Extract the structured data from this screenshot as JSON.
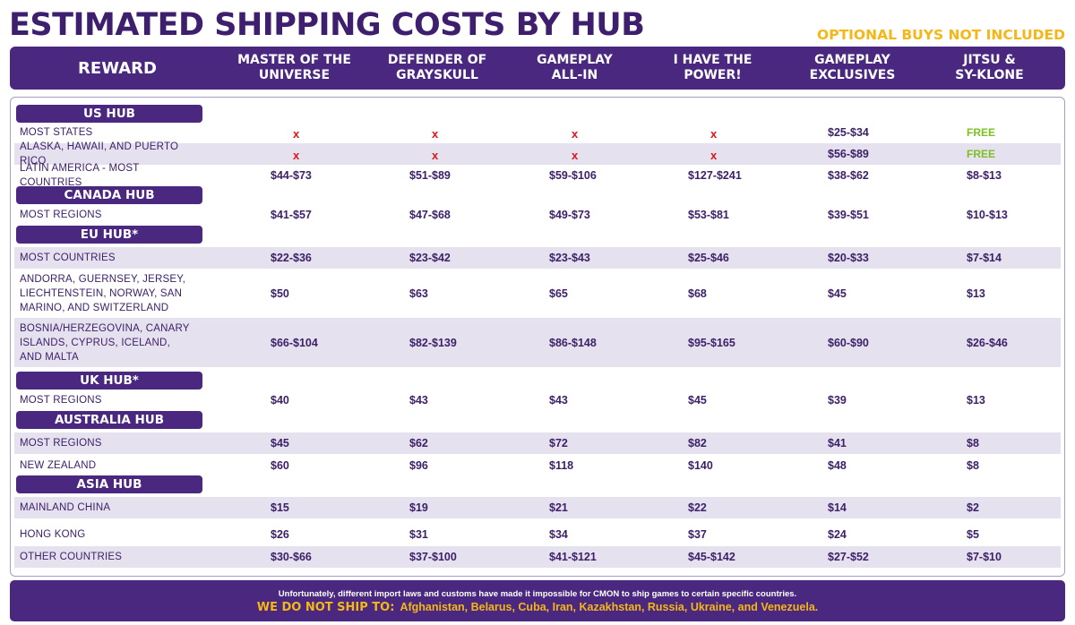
{
  "title": "ESTIMATED SHIPPING COSTS BY HUB",
  "optional_note": "OPTIONAL BUYS NOT INCLUDED",
  "colors": {
    "purple": "#4a2880",
    "dark_purple_text": "#3d2168",
    "row_shade": "#e6e1ef",
    "yellow": "#f5b715",
    "x_red": "#e0151b",
    "free_green": "#7cc122"
  },
  "header": {
    "reward": "REWARD",
    "columns": [
      "MASTER OF THE\nUNIVERSE",
      "DEFENDER OF\nGRAYSKULL",
      "GAMEPLAY\nALL-IN",
      "I HAVE THE\nPOWER!",
      "GAMEPLAY\nEXCLUSIVES",
      "JITSU &\nSY-KLONE"
    ]
  },
  "hubs": {
    "us": "US HUB",
    "canada": "CANADA HUB",
    "eu": "EU HUB*",
    "uk": "UK HUB*",
    "australia": "AUSTRALIA HUB",
    "asia": "ASIA HUB"
  },
  "rows": [
    {
      "name": "MOST STATES",
      "values": [
        "x",
        "x",
        "x",
        "x",
        "$25-$34",
        "FREE"
      ]
    },
    {
      "name": "ALASKA, HAWAII, AND PUERTO RICO",
      "values": [
        "x",
        "x",
        "x",
        "x",
        "$56-$89",
        "FREE"
      ]
    },
    {
      "name": "LATIN AMERICA - MOST COUNTRIES",
      "values": [
        "$44-$73",
        "$51-$89",
        "$59-$106",
        "$127-$241",
        "$38-$62",
        "$8-$13"
      ]
    },
    {
      "name": "MOST REGIONS",
      "values": [
        "$41-$57",
        "$47-$68",
        "$49-$73",
        "$53-$81",
        "$39-$51",
        "$10-$13"
      ]
    },
    {
      "name": "MOST COUNTRIES",
      "values": [
        "$22-$36",
        "$23-$42",
        "$23-$43",
        "$25-$46",
        "$20-$33",
        "$7-$14"
      ]
    },
    {
      "name": "ANDORRA, GUERNSEY, JERSEY,\nLIECHTENSTEIN, NORWAY, SAN\nMARINO, AND SWITZERLAND",
      "values": [
        "$50",
        "$63",
        "$65",
        "$68",
        "$45",
        "$13"
      ]
    },
    {
      "name": "BOSNIA/HERZEGOVINA, CANARY\nISLANDS, CYPRUS, ICELAND,\nAND MALTA",
      "values": [
        "$66-$104",
        "$82-$139",
        "$86-$148",
        "$95-$165",
        "$60-$90",
        "$26-$46"
      ]
    },
    {
      "name": "MOST REGIONS",
      "values": [
        "$40",
        "$43",
        "$43",
        "$45",
        "$39",
        "$13"
      ]
    },
    {
      "name": "MOST REGIONS",
      "values": [
        "$45",
        "$62",
        "$72",
        "$82",
        "$41",
        "$8"
      ]
    },
    {
      "name": "NEW ZEALAND",
      "values": [
        "$60",
        "$96",
        "$118",
        "$140",
        "$48",
        "$8"
      ]
    },
    {
      "name": "MAINLAND CHINA",
      "values": [
        "$15",
        "$19",
        "$21",
        "$22",
        "$14",
        "$2"
      ]
    },
    {
      "name": "HONG KONG",
      "values": [
        "$26",
        "$31",
        "$34",
        "$37",
        "$24",
        "$5"
      ]
    },
    {
      "name": "OTHER COUNTRIES",
      "values": [
        "$30-$66",
        "$37-$100",
        "$41-$121",
        "$45-$142",
        "$27-$52",
        "$7-$10"
      ]
    }
  ],
  "footer": {
    "line1": "Unfortunately, different import laws and customs have made it impossible for CMON to ship games to certain specific countries.",
    "lead": "WE DO NOT SHIP TO:",
    "countries": "Afghanistan, Belarus, Cuba, Iran, Kazakhstan, Russia, Ukraine, and Venezuela."
  }
}
